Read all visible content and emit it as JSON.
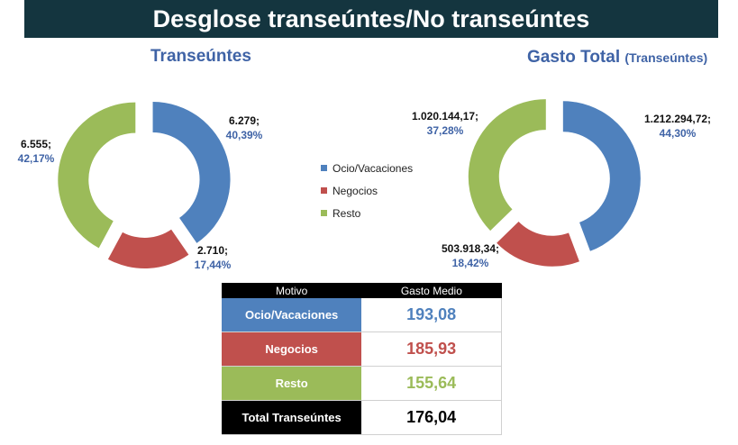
{
  "header": {
    "title": "Desglose transeúntes/No transeúntes"
  },
  "left_chart": {
    "title": "Transeúntes"
  },
  "right_chart": {
    "title": "Gasto Total",
    "title_sub": "(Transeúntes)"
  },
  "legend": {
    "items": [
      {
        "label": "Ocio/Vacaciones",
        "color": "#4f81bd"
      },
      {
        "label": "Negocios",
        "color": "#c0504d"
      },
      {
        "label": "Resto",
        "color": "#9bbb59"
      }
    ]
  },
  "chart_data": [
    {
      "type": "pie",
      "variant": "exploded-donut",
      "title": "Transeúntes",
      "slices": [
        {
          "category": "Ocio/Vacaciones",
          "value": 6279,
          "value_label": "6.279;",
          "percent": 40.39,
          "percent_label": "40,39%",
          "color": "#4f81bd"
        },
        {
          "category": "Negocios",
          "value": 2710,
          "value_label": "2.710;",
          "percent": 17.44,
          "percent_label": "17,44%",
          "color": "#c0504d"
        },
        {
          "category": "Resto",
          "value": 6555,
          "value_label": "6.555;",
          "percent": 42.17,
          "percent_label": "42,17%",
          "color": "#9bbb59"
        }
      ]
    },
    {
      "type": "pie",
      "variant": "exploded-donut",
      "title": "Gasto Total (Transeúntes)",
      "slices": [
        {
          "category": "Ocio/Vacaciones",
          "value": 1212294.72,
          "value_label": "1.212.294,72;",
          "percent": 44.3,
          "percent_label": "44,30%",
          "color": "#4f81bd"
        },
        {
          "category": "Negocios",
          "value": 503918.34,
          "value_label": "503.918,34;",
          "percent": 18.42,
          "percent_label": "18,42%",
          "color": "#c0504d"
        },
        {
          "category": "Resto",
          "value": 1020144.17,
          "value_label": "1.020.144,17;",
          "percent": 37.28,
          "percent_label": "37,28%",
          "color": "#9bbb59"
        }
      ]
    },
    {
      "type": "table",
      "columns": [
        "Motivo",
        "Gasto Medio"
      ],
      "rows": [
        {
          "motivo": "Ocio/Vacaciones",
          "gasto": "193,08",
          "color": "#4f81bd"
        },
        {
          "motivo": "Negocios",
          "gasto": "185,93",
          "color": "#c0504d"
        },
        {
          "motivo": "Resto",
          "gasto": "155,64",
          "color": "#9bbb59"
        },
        {
          "motivo": "Total Transeúntes",
          "gasto": "176,04",
          "color": "#000000",
          "value_color": "#000000"
        }
      ]
    }
  ]
}
